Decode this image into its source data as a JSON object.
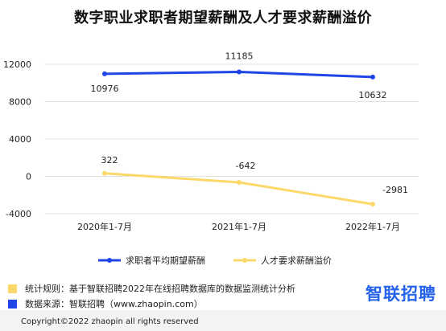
{
  "colors": {
    "salary": "#1F45E6",
    "premium": "#FAD96A",
    "grid": "#e3e3e3",
    "note_rule_swatch": "#FAD96A",
    "note_source_swatch": "#1F45E6",
    "brand": "#2563EB"
  },
  "chart_data": {
    "type": "line",
    "title": "数字职业求职者期望薪酬及人才要求薪酬溢价",
    "categories": [
      "2020年1-7月",
      "2021年1-7月",
      "2022年1-7月"
    ],
    "yticks": [
      12000,
      8000,
      4000,
      0,
      -4000
    ],
    "ylim": [
      -4000,
      12000
    ],
    "grid": true,
    "legend_position": "bottom",
    "series": [
      {
        "name": "求职者平均期望薪酬",
        "values": [
          10976,
          11185,
          10632
        ],
        "labels": [
          "10976",
          "11185",
          "10632"
        ]
      },
      {
        "name": "人才要求薪酬溢价",
        "values": [
          322,
          -642,
          -2981
        ],
        "labels": [
          "322",
          "-642",
          "-2981"
        ]
      }
    ]
  },
  "notes": {
    "rule": "统计规则：基于智联招聘2022年在线招聘数据库的数据监测统计分析",
    "source": "数据来源：智联招聘（www.zhaopin.com）"
  },
  "brand": {
    "text": "智联招聘"
  },
  "footer": {
    "copyright": "Copyright©2022 zhaopin all rights reserved"
  }
}
